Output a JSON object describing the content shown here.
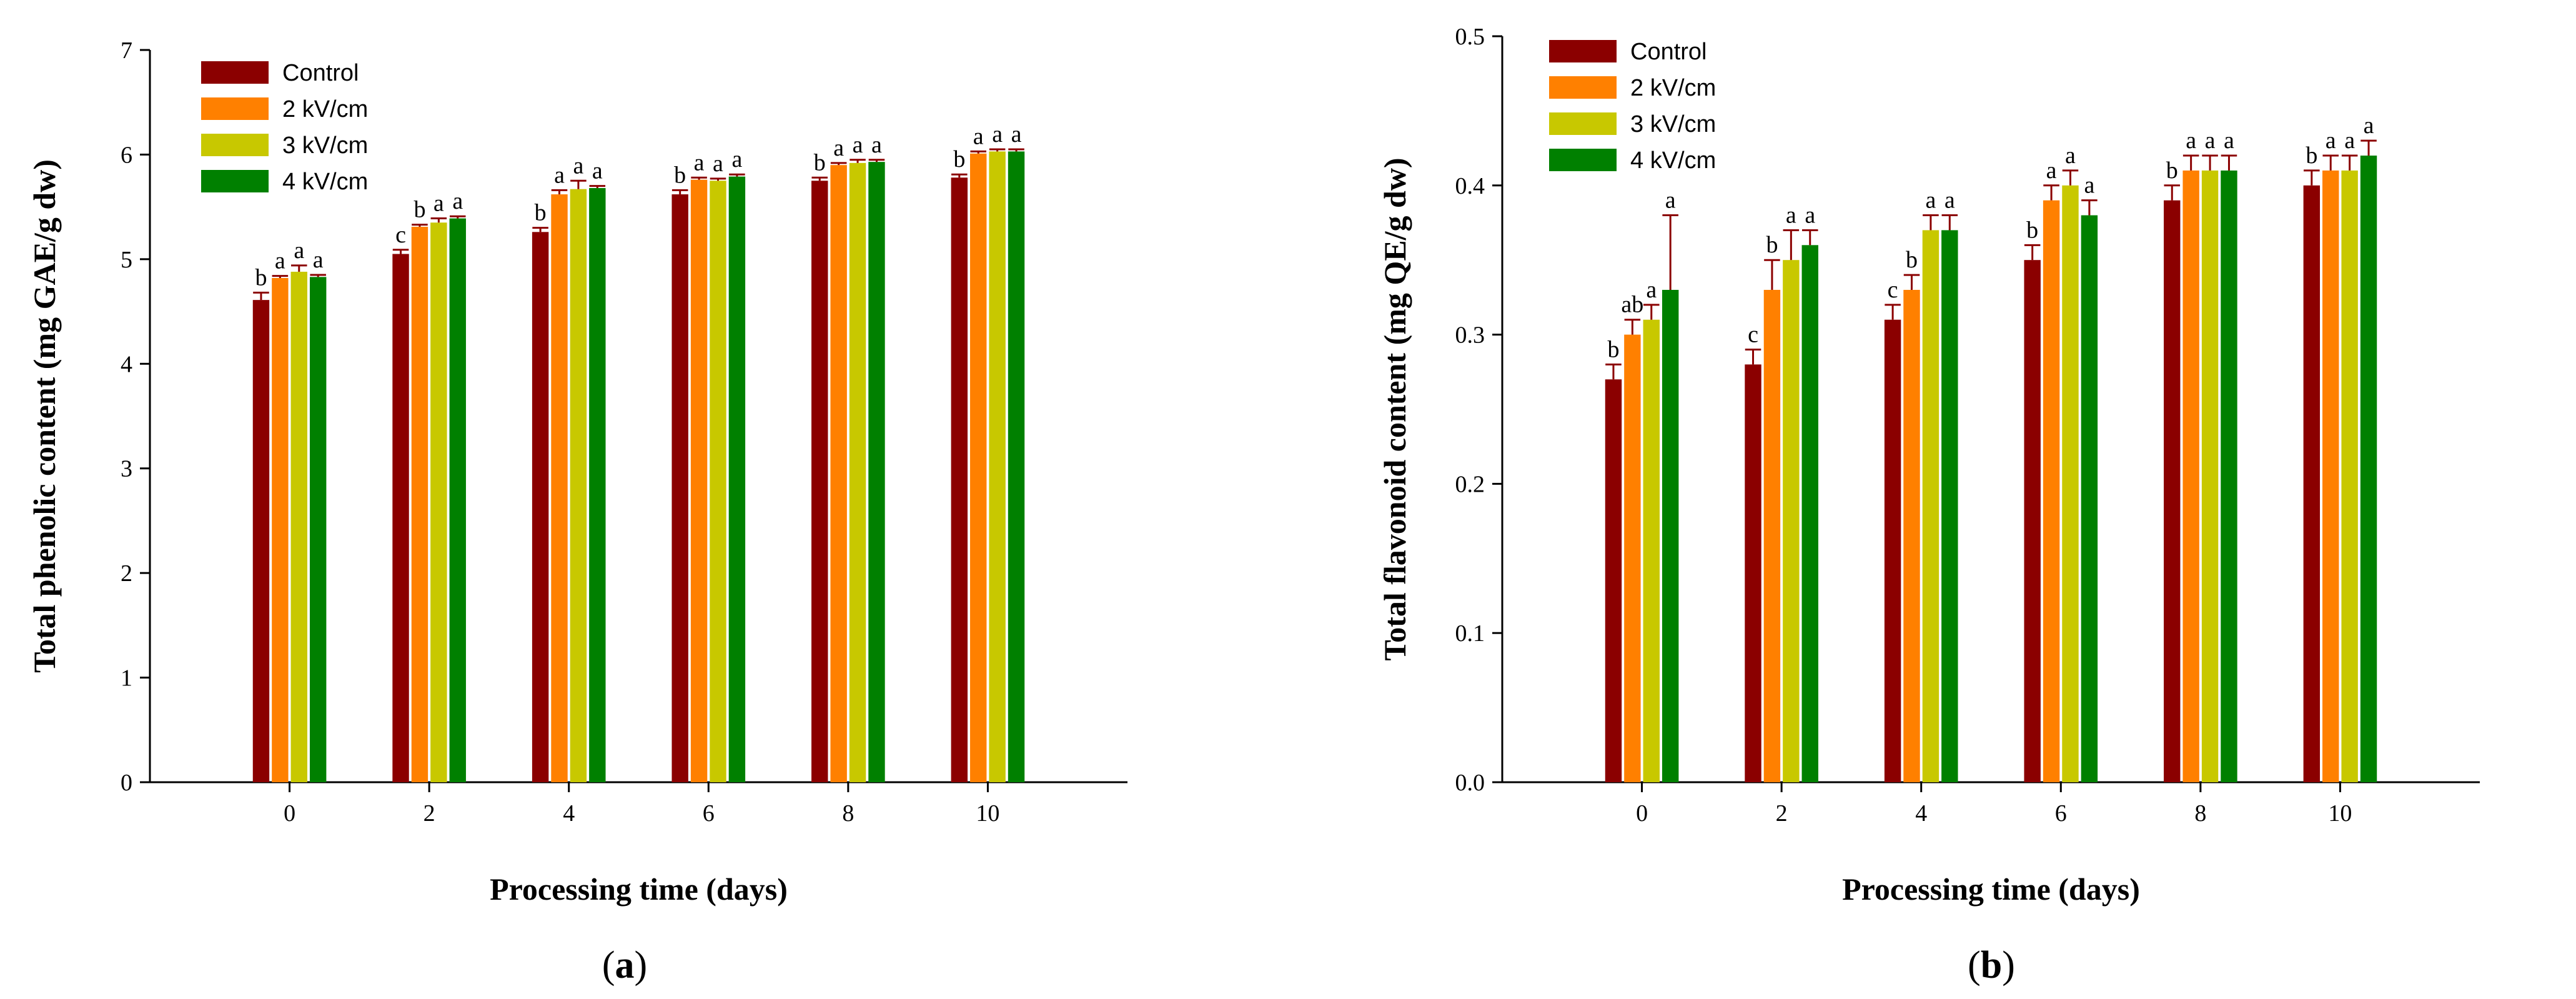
{
  "chart_data": [
    {
      "type": "bar",
      "panel_label": "(a)",
      "panel_letter": "a",
      "xlabel": "Processing time (days)",
      "ylabel": "Total phenolic content (mg GAE/g dw)",
      "ylim": [
        0,
        7
      ],
      "yticks": [
        "0",
        "1",
        "2",
        "3",
        "4",
        "5",
        "6",
        "7"
      ],
      "categories": [
        "0",
        "2",
        "4",
        "6",
        "8",
        "10"
      ],
      "legend_position": "top-left",
      "series": [
        {
          "name": "Control",
          "color": "#8B0000",
          "values": [
            4.61,
            5.05,
            5.26,
            5.62,
            5.75,
            5.78
          ],
          "errors": [
            0.07,
            0.04,
            0.04,
            0.04,
            0.03,
            0.03
          ],
          "letters": [
            "b",
            "c",
            "b",
            "b",
            "b",
            "b"
          ]
        },
        {
          "name": "2 kV/cm",
          "color": "#FF8000",
          "values": [
            4.82,
            5.31,
            5.62,
            5.76,
            5.9,
            6.01
          ],
          "errors": [
            0.02,
            0.02,
            0.04,
            0.02,
            0.02,
            0.02
          ],
          "letters": [
            "a",
            "b",
            "a",
            "a",
            "a",
            "a"
          ]
        },
        {
          "name": "3 kV/cm",
          "color": "#C8C800",
          "values": [
            4.88,
            5.35,
            5.67,
            5.75,
            5.92,
            6.03
          ],
          "errors": [
            0.06,
            0.04,
            0.08,
            0.02,
            0.03,
            0.02
          ],
          "letters": [
            "a",
            "a",
            "a",
            "a",
            "a",
            "a"
          ]
        },
        {
          "name": "4 kV/cm",
          "color": "#008000",
          "values": [
            4.83,
            5.39,
            5.68,
            5.79,
            5.93,
            6.03
          ],
          "errors": [
            0.02,
            0.02,
            0.02,
            0.02,
            0.02,
            0.02
          ],
          "letters": [
            "a",
            "a",
            "a",
            "a",
            "a",
            "a"
          ]
        }
      ]
    },
    {
      "type": "bar",
      "panel_label": "(b)",
      "panel_letter": "b",
      "xlabel": "Processing time (days)",
      "ylabel": "Total flavonoid content (mg QE/g dw)",
      "ylim": [
        0,
        0.5
      ],
      "yticks": [
        "0.0",
        "0.1",
        "0.2",
        "0.3",
        "0.4",
        "0.5"
      ],
      "categories": [
        "0",
        "2",
        "4",
        "6",
        "8",
        "10"
      ],
      "legend_position": "top-left",
      "series": [
        {
          "name": "Control",
          "color": "#8B0000",
          "values": [
            0.27,
            0.28,
            0.31,
            0.35,
            0.39,
            0.4
          ],
          "errors": [
            0.01,
            0.01,
            0.01,
            0.01,
            0.01,
            0.01
          ],
          "letters": [
            "b",
            "c",
            "c",
            "b",
            "b",
            "b"
          ]
        },
        {
          "name": "2 kV/cm",
          "color": "#FF8000",
          "values": [
            0.3,
            0.33,
            0.33,
            0.39,
            0.41,
            0.41
          ],
          "errors": [
            0.01,
            0.02,
            0.01,
            0.01,
            0.01,
            0.01
          ],
          "letters": [
            "ab",
            "b",
            "b",
            "a",
            "a",
            "a"
          ]
        },
        {
          "name": "3 kV/cm",
          "color": "#C8C800",
          "values": [
            0.31,
            0.35,
            0.37,
            0.4,
            0.41,
            0.41
          ],
          "errors": [
            0.01,
            0.02,
            0.01,
            0.01,
            0.01,
            0.01
          ],
          "letters": [
            "a",
            "a",
            "a",
            "a",
            "a",
            "a"
          ]
        },
        {
          "name": "4 kV/cm",
          "color": "#008000",
          "values": [
            0.33,
            0.36,
            0.37,
            0.38,
            0.41,
            0.42
          ],
          "errors": [
            0.05,
            0.01,
            0.01,
            0.01,
            0.01,
            0.01
          ],
          "letters": [
            "a",
            "a",
            "a",
            "a",
            "a",
            "a"
          ]
        }
      ]
    }
  ],
  "colors": {
    "axis": "#000000",
    "error_bar": "#8B0000"
  }
}
